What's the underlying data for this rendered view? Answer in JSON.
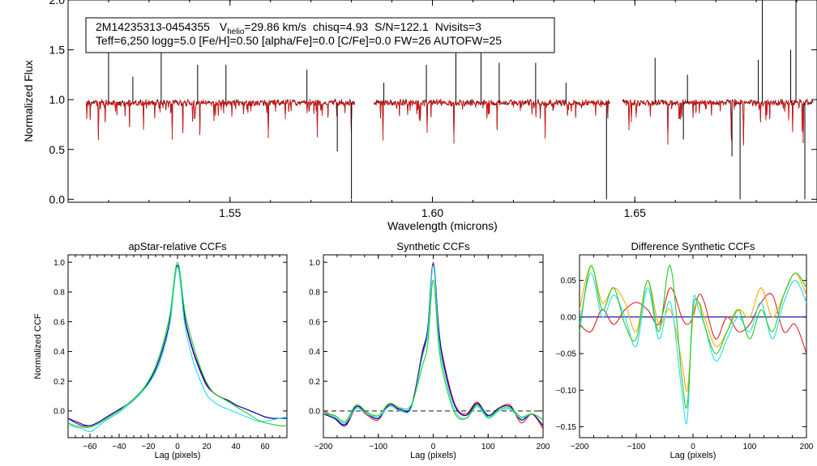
{
  "info_box": {
    "star_id": "2M14235313-0454355",
    "vhelio_label": "V",
    "vhelio_sub": "helio",
    "vhelio_value": "=29.86 km/s",
    "chisq": "chisq=4.93",
    "snr": "S/N=122.1",
    "nvisits": "Nvisits=3",
    "line2": "Teff=6,250 logg=5.0 [Fe/H]=0.50 [alpha/Fe]=0.0 [C/Fe]=0.0 FW=26 AUTOFW=25"
  },
  "colors": {
    "observed": "#000000",
    "model": "#dd1111",
    "ccf_blue": "#0000aa",
    "ccf_purple": "#800080",
    "ccf_cyan": "#22ddee",
    "ccf_green": "#22cc22",
    "ccf_red": "#dd2222",
    "ccf_orange": "#ffaa00",
    "dash": "#555555"
  },
  "chart_data": [
    {
      "id": "spectrum",
      "type": "line",
      "title": "",
      "xlabel": "Wavelength (microns)",
      "ylabel": "Normalized Flux",
      "xlim": [
        1.51,
        1.695
      ],
      "ylim": [
        -0.03,
        2.0
      ],
      "xticks": [
        1.55,
        1.6,
        1.65
      ],
      "xtick_labels": [
        "1.55",
        "1.60",
        "1.65"
      ],
      "yticks": [
        0.0,
        0.5,
        1.0,
        1.5,
        2.0
      ],
      "ytick_labels": [
        "0.0",
        "0.5",
        "1.0",
        "1.5",
        "2.0"
      ],
      "chips": [
        [
          1.5145,
          1.5808
        ],
        [
          1.5855,
          1.6438
        ],
        [
          1.647,
          1.694
        ]
      ],
      "continuum": 0.97,
      "emission_lines": [
        {
          "x": 1.52,
          "y": 1.52
        },
        {
          "x": 1.526,
          "y": 1.23
        },
        {
          "x": 1.533,
          "y": 1.65
        },
        {
          "x": 1.542,
          "y": 1.35
        },
        {
          "x": 1.549,
          "y": 1.35
        },
        {
          "x": 1.569,
          "y": 1.3
        },
        {
          "x": 1.588,
          "y": 1.17
        },
        {
          "x": 1.5985,
          "y": 1.35
        },
        {
          "x": 1.6058,
          "y": 1.57
        },
        {
          "x": 1.612,
          "y": 1.55
        },
        {
          "x": 1.6165,
          "y": 1.37
        },
        {
          "x": 1.6255,
          "y": 1.37
        },
        {
          "x": 1.633,
          "y": 1.17
        },
        {
          "x": 1.655,
          "y": 1.42
        },
        {
          "x": 1.663,
          "y": 1.25
        },
        {
          "x": 1.6805,
          "y": 1.4
        },
        {
          "x": 1.6815,
          "y": 2.03
        },
        {
          "x": 1.6885,
          "y": 1.5
        },
        {
          "x": 1.6898,
          "y": 2.02
        },
        {
          "x": 1.6955,
          "y": 1.35
        }
      ],
      "absorption_lines": [
        {
          "x": 1.58,
          "y": 0.0
        },
        {
          "x": 1.643,
          "y": 0.0
        },
        {
          "x": 1.676,
          "y": 0.0
        },
        {
          "x": 1.692,
          "y": 0.0
        },
        {
          "x": 1.674,
          "y": 0.43
        },
        {
          "x": 1.5765,
          "y": 0.48
        },
        {
          "x": 1.662,
          "y": 0.6
        }
      ],
      "series": [
        {
          "name": "observed",
          "color": "#000000"
        },
        {
          "name": "model",
          "color": "#dd1111"
        }
      ]
    },
    {
      "id": "aprelative",
      "type": "line",
      "title": "apStar-relative CCFs",
      "xlabel": "Lag (pixels)",
      "ylabel": "Normalized CCF",
      "xlim": [
        -75,
        75
      ],
      "ylim": [
        -0.18,
        1.05
      ],
      "xticks": [
        -60,
        -40,
        -20,
        0,
        20,
        40,
        60
      ],
      "xtick_labels": [
        "−60",
        "−40",
        "−20",
        "0",
        "20",
        "40",
        "60"
      ],
      "yticks": [
        0.0,
        0.2,
        0.4,
        0.6,
        0.8,
        1.0
      ],
      "ytick_labels": [
        "0.0",
        "0.2",
        "0.4",
        "0.6",
        "0.8",
        "1.0"
      ],
      "dashed_zero": false,
      "series": [
        {
          "name": "purple",
          "color": "#800080",
          "x": [
            -75,
            -70,
            -65,
            -60,
            -55,
            -50,
            -45,
            -40,
            -35,
            -30,
            -25,
            -20,
            -15,
            -10,
            -5,
            0,
            5,
            10,
            15,
            20,
            25,
            30,
            35,
            40,
            45,
            50,
            55,
            60,
            65,
            70,
            75
          ],
          "y": [
            -0.05,
            -0.08,
            -0.1,
            -0.1,
            -0.08,
            -0.05,
            -0.02,
            0.01,
            0.04,
            0.08,
            0.13,
            0.19,
            0.28,
            0.42,
            0.62,
            0.98,
            0.62,
            0.42,
            0.28,
            0.17,
            0.12,
            0.09,
            0.07,
            0.04,
            0.02,
            0.0,
            -0.02,
            -0.04,
            -0.05,
            -0.05,
            -0.05
          ]
        },
        {
          "name": "blue",
          "color": "#0000aa",
          "x": [
            -75,
            -70,
            -65,
            -60,
            -55,
            -50,
            -45,
            -40,
            -35,
            -30,
            -25,
            -20,
            -15,
            -10,
            -5,
            0,
            5,
            10,
            15,
            20,
            25,
            30,
            35,
            40,
            45,
            50,
            55,
            60,
            65,
            70,
            75
          ],
          "y": [
            -0.05,
            -0.07,
            -0.09,
            -0.1,
            -0.08,
            -0.05,
            -0.02,
            0.01,
            0.04,
            0.08,
            0.13,
            0.19,
            0.28,
            0.42,
            0.62,
            0.98,
            0.63,
            0.43,
            0.29,
            0.18,
            0.12,
            0.09,
            0.07,
            0.04,
            0.02,
            0.0,
            -0.02,
            -0.04,
            -0.05,
            -0.05,
            -0.05
          ]
        },
        {
          "name": "cyan",
          "color": "#22ddee",
          "x": [
            -75,
            -70,
            -65,
            -60,
            -55,
            -50,
            -45,
            -40,
            -35,
            -30,
            -25,
            -20,
            -15,
            -10,
            -5,
            0,
            5,
            10,
            15,
            20,
            25,
            30,
            35,
            40,
            45,
            50,
            55,
            60,
            65,
            70,
            75
          ],
          "y": [
            -0.09,
            -0.11,
            -0.12,
            -0.14,
            -0.11,
            -0.07,
            -0.04,
            -0.01,
            0.03,
            0.07,
            0.12,
            0.18,
            0.26,
            0.39,
            0.6,
            0.97,
            0.58,
            0.36,
            0.22,
            0.11,
            0.06,
            0.03,
            0.01,
            -0.01,
            -0.03,
            -0.05,
            -0.07,
            -0.07,
            -0.06,
            -0.05,
            -0.04
          ]
        },
        {
          "name": "green",
          "color": "#22cc22",
          "x": [
            -75,
            -70,
            -65,
            -60,
            -55,
            -50,
            -45,
            -40,
            -35,
            -30,
            -25,
            -20,
            -15,
            -10,
            -5,
            0,
            5,
            10,
            15,
            20,
            25,
            30,
            35,
            40,
            45,
            50,
            55,
            60,
            65,
            70,
            75
          ],
          "y": [
            -0.08,
            -0.1,
            -0.11,
            -0.11,
            -0.09,
            -0.06,
            -0.03,
            0.0,
            0.04,
            0.08,
            0.13,
            0.2,
            0.3,
            0.45,
            0.66,
            1.0,
            0.67,
            0.47,
            0.31,
            0.19,
            0.12,
            0.09,
            0.06,
            0.03,
            0.0,
            -0.03,
            -0.06,
            -0.08,
            -0.09,
            -0.1,
            -0.1
          ]
        }
      ]
    },
    {
      "id": "synthetic",
      "type": "line",
      "title": "Synthetic CCFs",
      "xlabel": "Lag (pixels)",
      "ylabel": "",
      "xlim": [
        -200,
        200
      ],
      "ylim": [
        -0.18,
        1.05
      ],
      "xticks": [
        -200,
        -100,
        0,
        100,
        200
      ],
      "xtick_labels": [
        "−200",
        "−100",
        "0",
        "100",
        "200"
      ],
      "yticks": [
        0.0,
        0.2,
        0.4,
        0.6,
        0.8,
        1.0
      ],
      "ytick_labels": [
        "0.0",
        "0.2",
        "0.4",
        "0.6",
        "0.8",
        "1.0"
      ],
      "dashed_zero": true,
      "series": [
        {
          "name": "red",
          "color": "#dd2222",
          "x": [
            -200,
            -180,
            -160,
            -140,
            -120,
            -100,
            -80,
            -60,
            -40,
            -20,
            -10,
            0,
            10,
            20,
            40,
            60,
            80,
            100,
            120,
            140,
            160,
            180,
            200
          ],
          "y": [
            0.0,
            -0.04,
            -0.1,
            0.02,
            -0.03,
            -0.06,
            0.05,
            0.0,
            0.03,
            0.4,
            0.55,
            1.0,
            0.55,
            0.32,
            0.04,
            -0.02,
            0.06,
            -0.04,
            0.02,
            0.04,
            -0.08,
            -0.02,
            -0.12
          ]
        },
        {
          "name": "purple",
          "color": "#800080",
          "x": [
            -200,
            -180,
            -160,
            -140,
            -120,
            -100,
            -80,
            -60,
            -40,
            -20,
            -10,
            0,
            10,
            20,
            40,
            60,
            80,
            100,
            120,
            140,
            160,
            180,
            200
          ],
          "y": [
            -0.02,
            -0.05,
            -0.1,
            0.03,
            -0.02,
            -0.05,
            0.04,
            0.01,
            0.03,
            0.38,
            0.55,
            0.99,
            0.55,
            0.3,
            0.03,
            -0.03,
            0.05,
            -0.03,
            0.02,
            0.03,
            -0.06,
            -0.02,
            -0.1
          ]
        },
        {
          "name": "blue",
          "color": "#0000aa",
          "x": [
            -200,
            -180,
            -160,
            -140,
            -120,
            -100,
            -80,
            -60,
            -40,
            -20,
            -10,
            0,
            10,
            20,
            40,
            60,
            80,
            100,
            120,
            140,
            160,
            180,
            200
          ],
          "y": [
            -0.02,
            -0.05,
            -0.09,
            0.03,
            -0.02,
            -0.05,
            0.04,
            0.01,
            0.03,
            0.38,
            0.55,
            0.99,
            0.55,
            0.3,
            0.03,
            -0.03,
            0.05,
            -0.03,
            0.02,
            0.03,
            -0.06,
            -0.02,
            -0.1
          ]
        },
        {
          "name": "cyan",
          "color": "#22ddee",
          "x": [
            -200,
            -180,
            -160,
            -140,
            -120,
            -100,
            -80,
            -60,
            -40,
            -20,
            -10,
            0,
            10,
            20,
            40,
            60,
            80,
            100,
            120,
            140,
            160,
            180,
            200
          ],
          "y": [
            -0.01,
            -0.04,
            -0.08,
            0.02,
            -0.02,
            -0.04,
            0.03,
            0.0,
            0.02,
            0.36,
            0.52,
            0.98,
            0.5,
            0.26,
            0.0,
            -0.05,
            0.03,
            -0.05,
            0.0,
            0.01,
            -0.05,
            -0.02,
            -0.06
          ]
        },
        {
          "name": "green",
          "color": "#22cc22",
          "x": [
            -200,
            -180,
            -160,
            -140,
            -120,
            -100,
            -80,
            -60,
            -40,
            -20,
            -10,
            0,
            10,
            20,
            40,
            60,
            80,
            100,
            120,
            140,
            160,
            180,
            200
          ],
          "y": [
            -0.02,
            -0.03,
            -0.07,
            0.04,
            -0.01,
            -0.03,
            0.05,
            0.02,
            0.04,
            0.3,
            0.45,
            0.88,
            0.44,
            0.22,
            -0.02,
            -0.05,
            0.04,
            -0.04,
            0.01,
            0.02,
            -0.04,
            -0.02,
            -0.06
          ]
        }
      ]
    },
    {
      "id": "difference",
      "type": "line",
      "title": "Difference Synthetic CCFs",
      "xlabel": "Lag (pixels)",
      "ylabel": "",
      "xlim": [
        -200,
        200
      ],
      "ylim": [
        -0.165,
        0.085
      ],
      "xticks": [
        -200,
        -100,
        0,
        100,
        200
      ],
      "xtick_labels": [
        "−200",
        "−100",
        "0",
        "100",
        "200"
      ],
      "yticks": [
        -0.15,
        -0.1,
        -0.05,
        0.0,
        0.05
      ],
      "ytick_labels": [
        "−0.15",
        "−0.10",
        "−0.05",
        "0.00",
        "0.05"
      ],
      "dashed_zero": false,
      "series": [
        {
          "name": "blue",
          "color": "#0000aa",
          "x": [
            -200,
            200
          ],
          "y": [
            0.0,
            0.0
          ]
        },
        {
          "name": "red",
          "color": "#dd2222",
          "x": [
            -200,
            -180,
            -160,
            -140,
            -120,
            -100,
            -80,
            -60,
            -40,
            -20,
            -10,
            0,
            10,
            20,
            40,
            60,
            80,
            100,
            120,
            140,
            160,
            180,
            200
          ],
          "y": [
            -0.01,
            -0.02,
            0.01,
            -0.01,
            0.01,
            0.02,
            0.01,
            -0.01,
            0.04,
            0.0,
            -0.01,
            0.0,
            0.03,
            0.02,
            -0.03,
            0.0,
            -0.02,
            -0.01,
            0.02,
            0.03,
            -0.02,
            -0.01,
            -0.05
          ]
        },
        {
          "name": "orange",
          "color": "#ffaa00",
          "x": [
            -200,
            -180,
            -160,
            -140,
            -120,
            -100,
            -80,
            -60,
            -40,
            -20,
            -10,
            0,
            10,
            20,
            40,
            60,
            80,
            100,
            120,
            140,
            160,
            180,
            200
          ],
          "y": [
            0.01,
            0.07,
            0.02,
            0.04,
            0.02,
            -0.02,
            0.05,
            -0.01,
            0.01,
            -0.06,
            -0.1,
            0.0,
            0.02,
            0.0,
            -0.04,
            -0.02,
            0.01,
            0.0,
            0.04,
            0.0,
            0.03,
            0.06,
            0.03
          ]
        },
        {
          "name": "cyan",
          "color": "#22ddee",
          "x": [
            -200,
            -180,
            -160,
            -140,
            -120,
            -100,
            -80,
            -60,
            -40,
            -20,
            -10,
            0,
            10,
            20,
            40,
            60,
            80,
            100,
            120,
            140,
            160,
            180,
            200
          ],
          "y": [
            -0.01,
            0.06,
            0.0,
            0.03,
            0.0,
            -0.04,
            0.04,
            -0.03,
            0.02,
            -0.1,
            -0.14,
            0.02,
            0.01,
            -0.01,
            -0.06,
            -0.03,
            0.0,
            -0.02,
            0.02,
            -0.03,
            0.02,
            0.05,
            0.02
          ]
        },
        {
          "name": "green",
          "color": "#22cc22",
          "x": [
            -200,
            -180,
            -160,
            -140,
            -120,
            -100,
            -80,
            -60,
            -40,
            -20,
            -10,
            0,
            10,
            20,
            40,
            60,
            80,
            100,
            120,
            140,
            160,
            180,
            200
          ],
          "y": [
            -0.02,
            0.07,
            0.01,
            0.04,
            -0.01,
            -0.03,
            0.05,
            -0.02,
            0.07,
            -0.08,
            -0.12,
            0.01,
            0.02,
            -0.01,
            -0.05,
            -0.02,
            0.01,
            -0.03,
            0.01,
            -0.02,
            0.03,
            0.06,
            0.04
          ]
        }
      ]
    }
  ]
}
